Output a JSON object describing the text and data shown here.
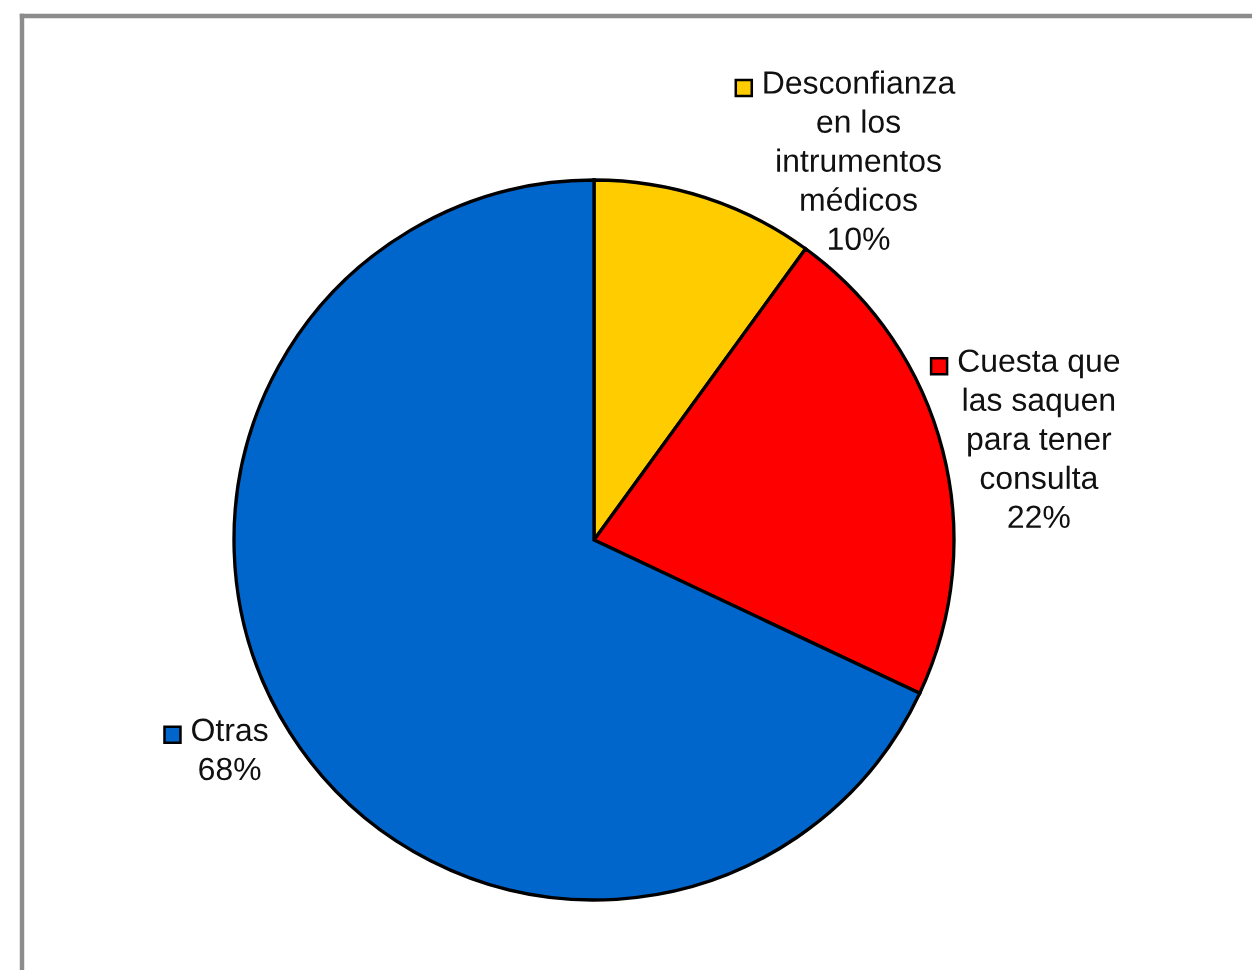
{
  "chart_data": {
    "type": "pie",
    "categories": [
      "Desconfianza en los intrumentos médicos",
      "Cuesta que las saquen para tener consulta",
      "Otras"
    ],
    "values": [
      10,
      22,
      68
    ],
    "value_labels": [
      "10%",
      "22%",
      "68%"
    ],
    "colors": [
      "#ffcc00",
      "#ff0000",
      "#0066cc"
    ],
    "legend": "right"
  }
}
